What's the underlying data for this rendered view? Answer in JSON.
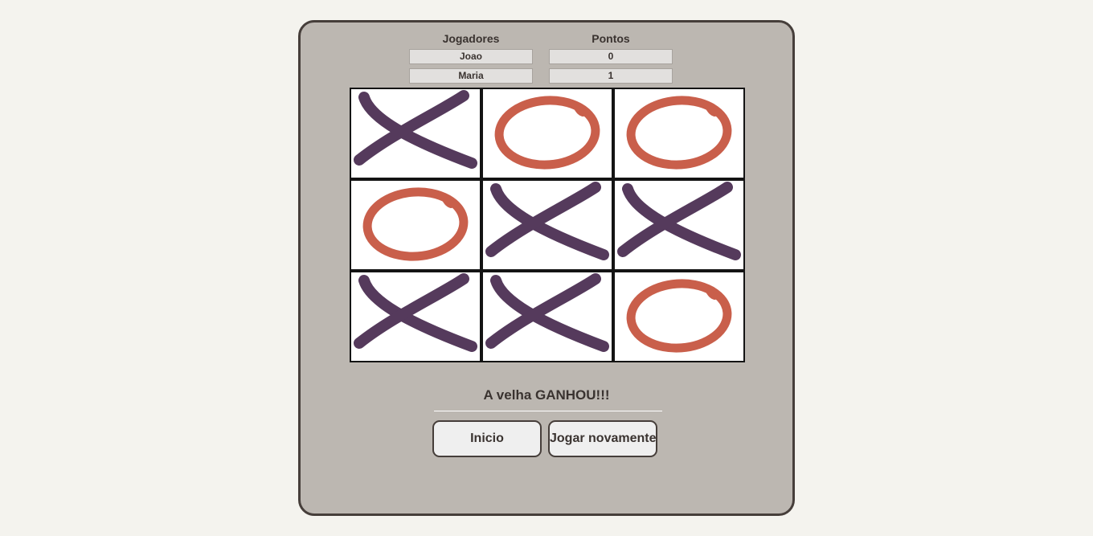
{
  "scoreboard": {
    "players_header": "Jogadores",
    "points_header": "Pontos",
    "rows": [
      {
        "player": "Joao",
        "points": "0"
      },
      {
        "player": "Maria",
        "points": "1"
      }
    ]
  },
  "board": {
    "cells": [
      "X",
      "O",
      "O",
      "O",
      "X",
      "X",
      "X",
      "X",
      "O"
    ]
  },
  "status": {
    "message": "A velha GANHOU!!!"
  },
  "buttons": {
    "home_label": "Inicio",
    "play_again_label": "Jogar novamente"
  },
  "colors": {
    "x_mark": "#553a5c",
    "o_mark": "#c95f4b",
    "panel": "#bcb7b1",
    "panel_border": "#463e3a",
    "page_bg": "#f4f3ee"
  },
  "icons": {
    "x_mark": "x-mark-icon",
    "o_mark": "o-mark-icon"
  }
}
